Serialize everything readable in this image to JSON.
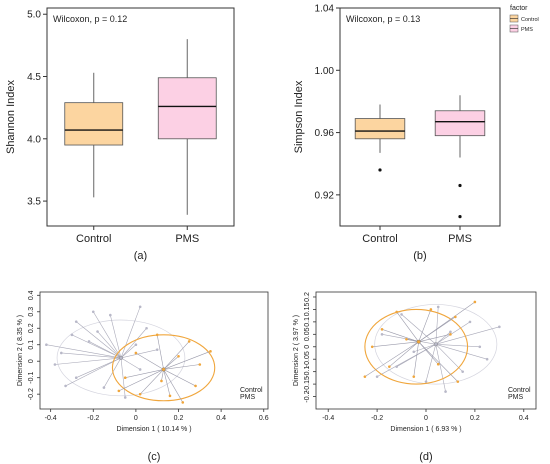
{
  "chart_data": [
    {
      "type": "box",
      "panel_label": "(a)",
      "annotation": "Wilcoxon, p = 0.12",
      "xlabel": "",
      "ylabel": "Shannon Index",
      "ylim": [
        3.3,
        5.05
      ],
      "yticks": [
        3.5,
        4.0,
        4.5,
        5.0
      ],
      "ytick_labels": [
        "3.5",
        "4.0",
        "4.5",
        "5.0"
      ],
      "categories": [
        "Control",
        "PMS"
      ],
      "boxes": [
        {
          "name": "Control",
          "min": 3.53,
          "q1": 3.95,
          "median": 4.07,
          "q3": 4.29,
          "max": 4.53,
          "outliers": [],
          "color": "#fcd5a0"
        },
        {
          "name": "PMS",
          "min": 3.39,
          "q1": 4.0,
          "median": 4.26,
          "q3": 4.49,
          "max": 4.8,
          "outliers": [],
          "color": "#fcd0e4"
        }
      ]
    },
    {
      "type": "box",
      "panel_label": "(b)",
      "annotation": "Wilcoxon, p = 0.13",
      "xlabel": "",
      "ylabel": "Simpson Index",
      "ylim": [
        0.9,
        1.04
      ],
      "yticks": [
        0.92,
        0.96,
        1.0,
        1.04
      ],
      "ytick_labels": [
        "0.92",
        "0.96",
        "1.00",
        "1.04"
      ],
      "categories": [
        "Control",
        "PMS"
      ],
      "boxes": [
        {
          "name": "Control",
          "min": 0.947,
          "q1": 0.956,
          "median": 0.961,
          "q3": 0.969,
          "max": 0.978,
          "outliers": [
            0.936
          ],
          "color": "#fcd5a0"
        },
        {
          "name": "PMS",
          "min": 0.944,
          "q1": 0.958,
          "median": 0.967,
          "q3": 0.974,
          "max": 0.984,
          "outliers": [
            0.926,
            0.906
          ],
          "color": "#fcd0e4"
        }
      ],
      "legend": {
        "title": "factor",
        "entries": [
          "Control",
          "PMS"
        ],
        "placement": "top-right"
      }
    },
    {
      "type": "scatter",
      "panel_label": "(c)",
      "xlabel": "Dimension 1 ( 10.14 % )",
      "ylabel": "Dimension 2 ( 8.35 % )",
      "xlim": [
        -0.45,
        0.62
      ],
      "ylim": [
        -0.29,
        0.42
      ],
      "xticks": [
        -0.4,
        -0.2,
        0,
        0.2,
        0.4,
        0.6
      ],
      "xtick_labels": [
        "-0.4",
        "-0.2",
        "0",
        "0.2",
        "0.4",
        "0.6"
      ],
      "yticks": [
        -0.2,
        -0.1,
        0,
        0.1,
        0.2,
        0.3,
        0.4
      ],
      "ytick_labels": [
        "-0.2",
        "-0.1",
        "0",
        "0.1",
        "0.2",
        "0.3",
        "0.4"
      ],
      "legend": {
        "entries": [
          "Control",
          "PMS"
        ],
        "placement": "bottom-right"
      },
      "series": [
        {
          "name": "Control",
          "color": "#b8b8c8",
          "centroid": [
            -0.07,
            0.02
          ],
          "ellipse": {
            "cx": -0.07,
            "cy": 0.02,
            "rx": 0.3,
            "ry": 0.23
          },
          "points": [
            [
              -0.2,
              0.3
            ],
            [
              -0.3,
              0.16
            ],
            [
              -0.22,
              0.12
            ],
            [
              -0.12,
              0.28
            ],
            [
              0.02,
              0.33
            ],
            [
              -0.35,
              0.05
            ],
            [
              -0.38,
              -0.02
            ],
            [
              -0.28,
              -0.1
            ],
            [
              -0.15,
              -0.16
            ],
            [
              -0.05,
              -0.22
            ],
            [
              0.05,
              0.2
            ],
            [
              -0.28,
              0.24
            ],
            [
              0.1,
              0.07
            ],
            [
              -0.18,
              0.18
            ],
            [
              -0.33,
              -0.15
            ],
            [
              0.02,
              -0.05
            ],
            [
              -0.42,
              0.1
            ],
            [
              0.0,
              0.1
            ]
          ]
        },
        {
          "name": "PMS",
          "color": "#f0a63c",
          "centroid": [
            0.13,
            -0.05
          ],
          "ellipse": {
            "cx": 0.13,
            "cy": -0.04,
            "rx": 0.24,
            "ry": 0.2
          },
          "points": [
            [
              0.1,
              0.16
            ],
            [
              0.25,
              0.12
            ],
            [
              0.3,
              -0.02
            ],
            [
              0.28,
              -0.15
            ],
            [
              0.16,
              -0.21
            ],
            [
              0.02,
              -0.2
            ],
            [
              -0.05,
              -0.1
            ],
            [
              0.0,
              0.05
            ],
            [
              0.2,
              0.03
            ],
            [
              0.12,
              -0.12
            ],
            [
              0.22,
              -0.25
            ],
            [
              -0.08,
              -0.18
            ],
            [
              0.35,
              0.06
            ]
          ]
        }
      ]
    },
    {
      "type": "scatter",
      "panel_label": "(d)",
      "xlabel": "Dimension 1 ( 6.93 % )",
      "ylabel": "Dimension 2 ( 3.97 % )",
      "xlim": [
        -0.45,
        0.45
      ],
      "ylim": [
        -0.25,
        0.22
      ],
      "xticks": [
        -0.4,
        -0.2,
        0,
        0.2,
        0.4
      ],
      "xtick_labels": [
        "-0.4",
        "-0.2",
        "0",
        "0.2",
        "0.4"
      ],
      "yticks": [
        -0.2,
        -0.15,
        -0.1,
        -0.05,
        0,
        0.05,
        0.1,
        0.15,
        0.2
      ],
      "ytick_labels": [
        "-0.2",
        "-0.15",
        "-0.1",
        "-0.05",
        "0",
        "0.05",
        "0.1",
        "0.15",
        "0.2"
      ],
      "legend": {
        "entries": [
          "Control",
          "PMS"
        ],
        "placement": "bottom-right"
      },
      "series": [
        {
          "name": "Control",
          "color": "#b8b8c8",
          "centroid": [
            0.04,
            0.01
          ],
          "ellipse": {
            "cx": 0.04,
            "cy": 0.01,
            "rx": 0.25,
            "ry": 0.16
          },
          "points": [
            [
              -0.1,
              0.13
            ],
            [
              0.05,
              0.16
            ],
            [
              0.18,
              0.1
            ],
            [
              0.22,
              0.0
            ],
            [
              0.15,
              -0.1
            ],
            [
              0.0,
              -0.14
            ],
            [
              -0.12,
              -0.08
            ],
            [
              -0.18,
              0.05
            ],
            [
              0.1,
              0.06
            ],
            [
              0.25,
              -0.05
            ],
            [
              -0.05,
              -0.02
            ],
            [
              0.3,
              0.08
            ],
            [
              0.08,
              -0.18
            ],
            [
              -0.2,
              -0.12
            ]
          ]
        },
        {
          "name": "PMS",
          "color": "#f0a63c",
          "centroid": [
            -0.03,
            0.02
          ],
          "ellipse": {
            "cx": -0.04,
            "cy": 0.0,
            "rx": 0.21,
            "ry": 0.15
          },
          "points": [
            [
              -0.18,
              0.07
            ],
            [
              -0.22,
              0.0
            ],
            [
              -0.15,
              -0.08
            ],
            [
              -0.05,
              -0.12
            ],
            [
              0.02,
              0.15
            ],
            [
              0.12,
              0.12
            ],
            [
              0.1,
              0.05
            ],
            [
              -0.08,
              0.03
            ],
            [
              0.05,
              -0.07
            ],
            [
              0.13,
              -0.14
            ],
            [
              -0.12,
              0.14
            ],
            [
              0.2,
              0.18
            ],
            [
              -0.25,
              -0.12
            ]
          ]
        }
      ]
    }
  ]
}
